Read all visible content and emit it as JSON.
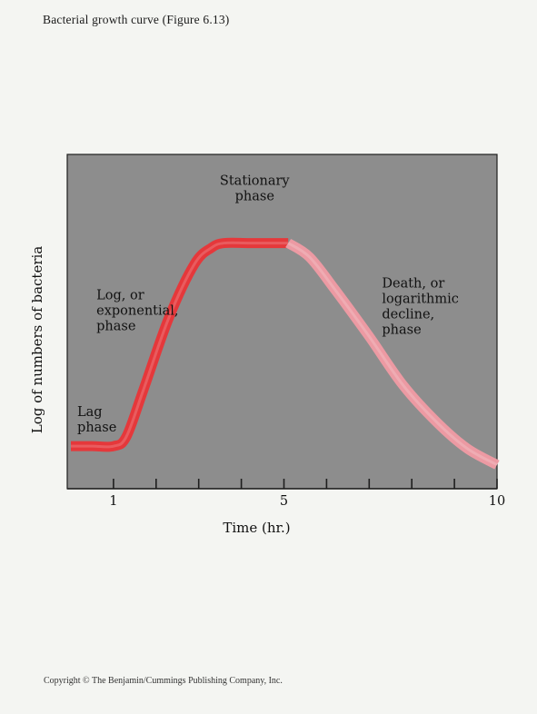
{
  "page": {
    "title": "Bacterial growth curve  (Figure 6.13)",
    "copyright": "Copyright © The Benjamin/Cummings Publishing Company, Inc."
  },
  "colors": {
    "plot_background": "#8d8d8d",
    "growth_curve": "#e5383b",
    "death_curve": "#ec9aa3",
    "frame": "#1e1e1e"
  },
  "chart_data": {
    "type": "line",
    "title": "",
    "xlabel": "Time (hr.)",
    "ylabel": "Log of numbers of bacteria",
    "xlim": [
      0,
      10
    ],
    "ylim": [
      0,
      10
    ],
    "grid": false,
    "x_ticks": [
      1,
      2,
      3,
      4,
      5,
      6,
      7,
      8,
      9,
      10
    ],
    "x_tick_labels": [
      {
        "x": 1,
        "label": "1"
      },
      {
        "x": 5,
        "label": "5"
      },
      {
        "x": 10,
        "label": "10"
      }
    ],
    "y_scale_note": "log",
    "series": [
      {
        "name": "",
        "color": "#e5383b",
        "x": [
          0,
          0.5,
          1,
          1.3,
          1.7,
          2.3,
          2.9,
          3.3,
          3.6,
          4.2,
          5.1
        ],
        "y": [
          1.2,
          1.2,
          1.2,
          1.6,
          3.6,
          6.7,
          9.0,
          9.7,
          9.9,
          9.9,
          9.9
        ]
      },
      {
        "name": "",
        "color": "#ec9aa3",
        "x": [
          5.1,
          5.6,
          6.2,
          7.0,
          7.8,
          8.6,
          9.3,
          10.0
        ],
        "y": [
          9.9,
          9.3,
          7.9,
          5.9,
          3.8,
          2.2,
          1.1,
          0.4
        ]
      }
    ],
    "annotations": [
      {
        "lines": [
          "Lag",
          "phase"
        ],
        "x": 0.15,
        "y": 2.5
      },
      {
        "lines": [
          "Log, or",
          "exponential,",
          "phase"
        ],
        "x": 0.6,
        "y": 7.5
      },
      {
        "lines": [
          "Stationary",
          "phase"
        ],
        "x": 4.1,
        "y": 12.4
      },
      {
        "lines": [
          "Death, or",
          "logarithmic",
          "decline,",
          "phase"
        ],
        "x": 7.3,
        "y": 8.0
      }
    ]
  }
}
